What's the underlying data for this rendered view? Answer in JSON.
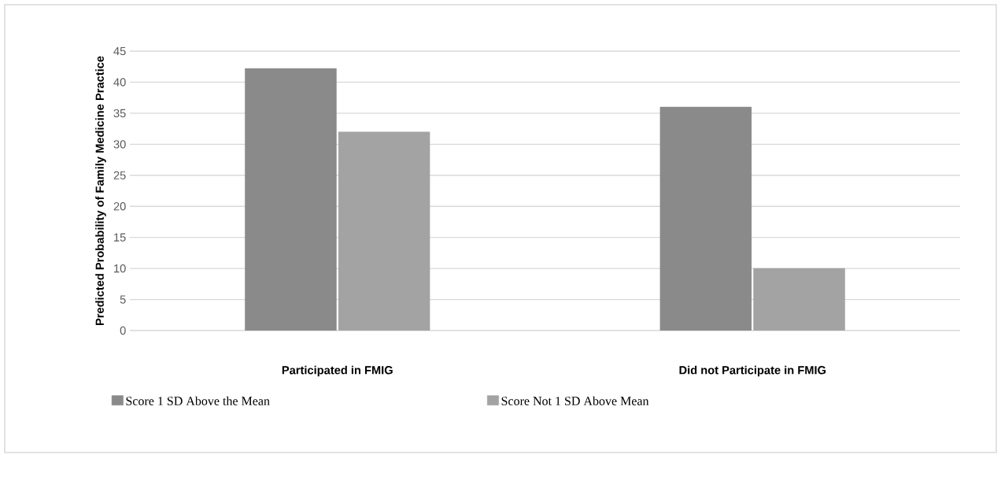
{
  "chart_data": {
    "type": "bar",
    "ylabel": "Predicted Probability of Family Medicine Practice",
    "categories": [
      "Participated in FMIG",
      "Did not Participate in FMIG"
    ],
    "series": [
      {
        "name": "Score 1 SD Above the Mean",
        "color": "#8a8a8a",
        "values": [
          42.2,
          36
        ]
      },
      {
        "name": "Score Not 1 SD Above Mean",
        "color": "#a3a3a3",
        "values": [
          32,
          10
        ]
      }
    ],
    "ylim": [
      0,
      45
    ],
    "yticks": [
      0,
      5,
      10,
      15,
      20,
      25,
      30,
      35,
      40,
      45
    ],
    "grid": "y",
    "legend": "bottom"
  }
}
